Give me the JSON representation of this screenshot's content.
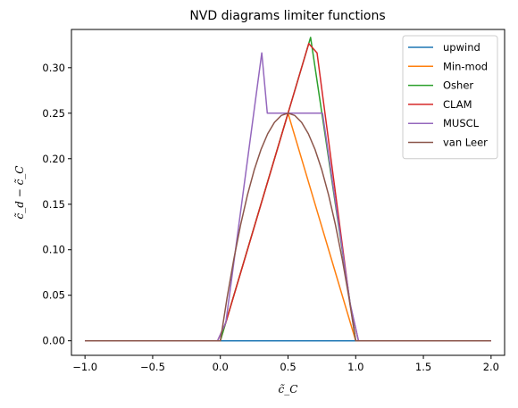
{
  "chart_data": {
    "type": "line",
    "title": "NVD diagrams limiter functions",
    "xlabel": "c̃_C",
    "ylabel": "c̃_d − c̃_C",
    "xlim": [
      -1.1,
      2.1
    ],
    "ylim": [
      -0.016,
      0.342
    ],
    "xticks": [
      -1.0,
      -0.5,
      0.0,
      0.5,
      1.0,
      1.5,
      2.0
    ],
    "xtick_labels": [
      "−1.0",
      "−0.5",
      "0.0",
      "0.5",
      "1.0",
      "1.5",
      "2.0"
    ],
    "yticks": [
      0.0,
      0.05,
      0.1,
      0.15,
      0.2,
      0.25,
      0.3
    ],
    "ytick_labels": [
      "0.00",
      "0.05",
      "0.10",
      "0.15",
      "0.20",
      "0.25",
      "0.30"
    ],
    "grid": false,
    "legend_position": "top-right",
    "series": [
      {
        "name": "upwind",
        "color": "#1f77b4",
        "x": [
          -1.0,
          2.0
        ],
        "y": [
          0.0,
          0.0
        ]
      },
      {
        "name": "Min-mod",
        "color": "#ff7f0e",
        "x": [
          -1.0,
          0.0,
          0.5,
          1.0,
          2.0
        ],
        "y": [
          0.0,
          0.0,
          0.25,
          0.0,
          0.0
        ]
      },
      {
        "name": "Osher",
        "color": "#2ca02c",
        "x": [
          -1.0,
          0.0,
          0.6667,
          1.0,
          2.0
        ],
        "y": [
          0.0,
          0.0,
          0.3333,
          0.0,
          0.0
        ]
      },
      {
        "name": "CLAM",
        "color": "#d62728",
        "x": [
          -1.0,
          -0.0204,
          0.0408,
          0.6531,
          0.7143,
          0.9592,
          1.0204,
          2.0
        ],
        "y": [
          0.0,
          0.0,
          0.0201,
          0.3265,
          0.3163,
          0.0393,
          0.0,
          0.0
        ]
      },
      {
        "name": "MUSCL",
        "color": "#9467bd",
        "x": [
          -1.0,
          -0.0204,
          0.0408,
          0.3061,
          0.3469,
          0.7551,
          0.9592,
          1.0204,
          2.0
        ],
        "y": [
          0.0,
          0.0,
          0.0204,
          0.3163,
          0.25,
          0.25,
          0.0408,
          0.0,
          0.0
        ]
      },
      {
        "name": "van Leer",
        "color": "#8c564b",
        "x": [
          -1.0,
          -0.0204,
          0.0,
          0.05,
          0.1,
          0.15,
          0.2,
          0.25,
          0.3,
          0.35,
          0.4,
          0.45,
          0.5,
          0.55,
          0.6,
          0.65,
          0.7,
          0.75,
          0.8,
          0.85,
          0.9,
          0.95,
          1.0,
          1.0204,
          2.0
        ],
        "y": [
          0.0,
          0.0,
          0.0,
          0.0475,
          0.09,
          0.1275,
          0.16,
          0.1875,
          0.21,
          0.2275,
          0.24,
          0.2475,
          0.25,
          0.2475,
          0.24,
          0.2275,
          0.21,
          0.1875,
          0.16,
          0.1275,
          0.09,
          0.0475,
          0.0,
          0.0,
          0.0
        ]
      }
    ]
  }
}
